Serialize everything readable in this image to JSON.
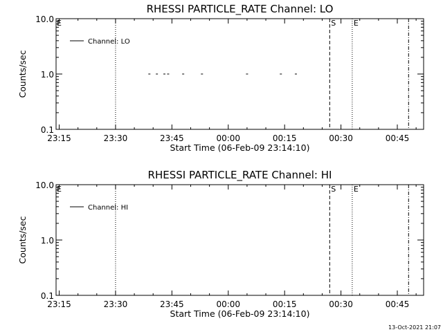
{
  "chart_data": [
    {
      "type": "scatter",
      "title": "RHESSI PARTICLE_RATE Channel: LO",
      "xlabel": "Start Time (06-Feb-09 23:14:10)",
      "ylabel": "Counts/sec",
      "y_scale": "log",
      "ylim": [
        0.1,
        10.0
      ],
      "xlim": [
        "23:14:10",
        "00:52:00"
      ],
      "x_ticks": [
        "23:15",
        "23:30",
        "23:45",
        "00:00",
        "00:15",
        "00:30",
        "00:45"
      ],
      "y_ticks": [
        "0.1",
        "1.0",
        "10.0"
      ],
      "legend": {
        "label": "Channel: LO",
        "placement": "top-left"
      },
      "series": [
        {
          "name": "Channel: LO",
          "style": "short-dashes",
          "x": [
            "23:39",
            "23:41",
            "23:43",
            "23:44",
            "23:48",
            "23:53",
            "00:05",
            "00:14",
            "00:18"
          ],
          "y": [
            1.0,
            1.0,
            1.0,
            1.0,
            1.0,
            1.0,
            1.0,
            1.0,
            1.0
          ]
        }
      ],
      "vlines": [
        {
          "x": "23:30",
          "style": "dotted",
          "label": ""
        },
        {
          "x": "00:27",
          "style": "dashed",
          "label": "S"
        },
        {
          "x": "00:33",
          "style": "dotted",
          "label": "E"
        },
        {
          "x": "00:48",
          "style": "dash-dot",
          "label": ""
        }
      ],
      "corner_label": "E"
    },
    {
      "type": "scatter",
      "title": "RHESSI PARTICLE_RATE Channel: HI",
      "xlabel": "Start Time (06-Feb-09 23:14:10)",
      "ylabel": "Counts/sec",
      "y_scale": "log",
      "ylim": [
        0.1,
        10.0
      ],
      "xlim": [
        "23:14:10",
        "00:52:00"
      ],
      "x_ticks": [
        "23:15",
        "23:30",
        "23:45",
        "00:00",
        "00:15",
        "00:30",
        "00:45"
      ],
      "y_ticks": [
        "0.1",
        "1.0",
        "10.0"
      ],
      "legend": {
        "label": "Channel: HI",
        "placement": "top-left"
      },
      "series": [
        {
          "name": "Channel: HI",
          "style": "short-dashes",
          "x": [],
          "y": []
        }
      ],
      "vlines": [
        {
          "x": "23:30",
          "style": "dotted",
          "label": ""
        },
        {
          "x": "00:27",
          "style": "dashed",
          "label": "S"
        },
        {
          "x": "00:33",
          "style": "dotted",
          "label": "E"
        },
        {
          "x": "00:48",
          "style": "dash-dot",
          "label": ""
        }
      ],
      "corner_label": "E"
    }
  ],
  "timestamp": "13-Oct-2021 21:07"
}
